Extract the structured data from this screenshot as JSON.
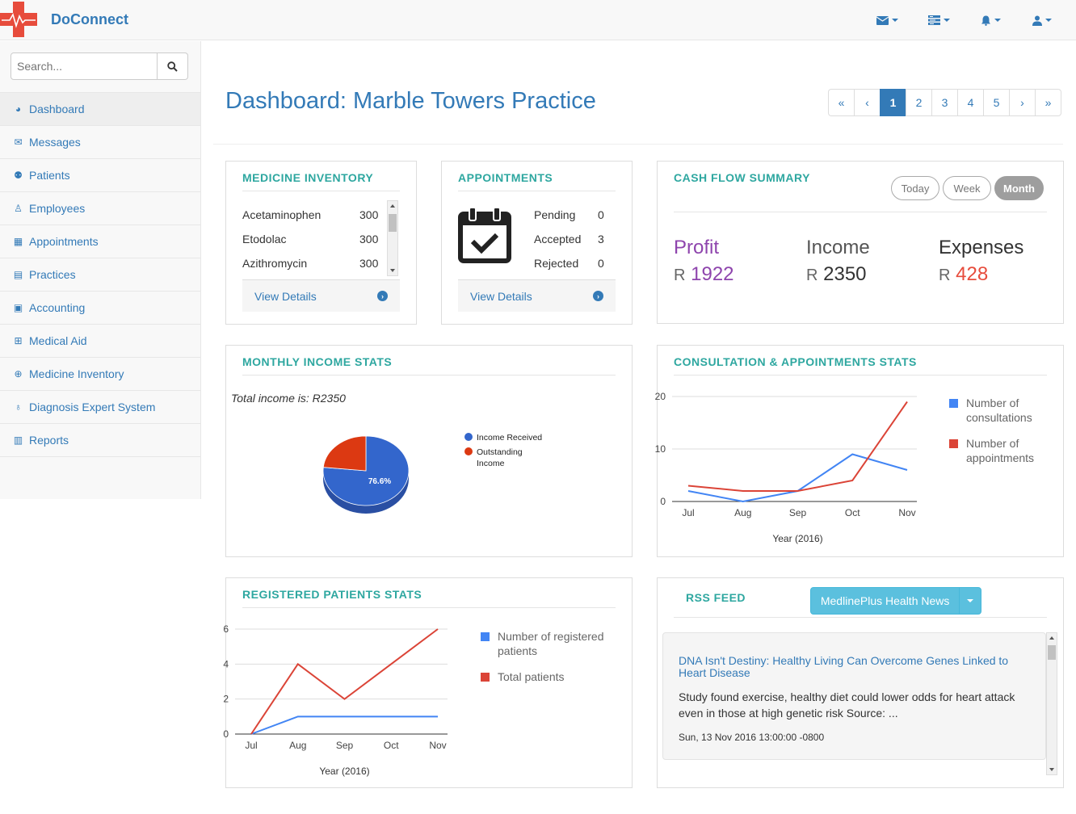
{
  "brand": {
    "name": "DoConnect"
  },
  "topnav": {
    "icons": [
      "envelope-icon",
      "tasks-icon",
      "bell-icon",
      "user-icon"
    ]
  },
  "search": {
    "placeholder": "Search..."
  },
  "sidebar": {
    "items": [
      {
        "label": "Dashboard",
        "icon": "dashboard-icon"
      },
      {
        "label": "Messages",
        "icon": "envelope-icon"
      },
      {
        "label": "Patients",
        "icon": "users-icon"
      },
      {
        "label": "Employees",
        "icon": "male-icon"
      },
      {
        "label": "Appointments",
        "icon": "calendar-icon"
      },
      {
        "label": "Practices",
        "icon": "building-icon"
      },
      {
        "label": "Accounting",
        "icon": "money-icon"
      },
      {
        "label": "Medical Aid",
        "icon": "plus-square-icon"
      },
      {
        "label": "Medicine Inventory",
        "icon": "medkit-icon"
      },
      {
        "label": "Diagnosis Expert System",
        "icon": "stethoscope-icon"
      },
      {
        "label": "Reports",
        "icon": "bar-chart-icon"
      }
    ]
  },
  "main": {
    "title": "Dashboard: Marble Towers Practice",
    "pagination": {
      "first": "«",
      "prev": "‹",
      "pages": [
        "1",
        "2",
        "3",
        "4",
        "5"
      ],
      "active": "1",
      "next": "›",
      "last": "»"
    }
  },
  "medicine_inventory": {
    "title": "MEDICINE INVENTORY",
    "rows": [
      {
        "name": "Acetaminophen",
        "qty": "300"
      },
      {
        "name": "Etodolac",
        "qty": "300"
      },
      {
        "name": "Azithromycin",
        "qty": "300"
      }
    ],
    "view_details": "View Details"
  },
  "appointments": {
    "title": "APPOINTMENTS",
    "rows": [
      {
        "label": "Pending",
        "count": "0"
      },
      {
        "label": "Accepted",
        "count": "3"
      },
      {
        "label": "Rejected",
        "count": "0"
      }
    ],
    "view_details": "View Details"
  },
  "cash_flow": {
    "title": "CASH FLOW SUMMARY",
    "filters": [
      "Today",
      "Week",
      "Month"
    ],
    "active_filter": "Month",
    "currency": "R",
    "items": [
      {
        "label": "Profit",
        "value": "1922",
        "color": "#8e44ad"
      },
      {
        "label": "Income",
        "value": "2350",
        "color": "#333333"
      },
      {
        "label": "Expenses",
        "value": "428",
        "color": "#e74c3c"
      }
    ]
  },
  "monthly_income": {
    "title": "MONTHLY INCOME STATS",
    "note": "Total income is: R2350",
    "slice_label": "76.6%"
  },
  "consultation_stats": {
    "title": "CONSULTATION & APPOINTMENTS STATS"
  },
  "registered_patients": {
    "title": "REGISTERED PATIENTS STATS"
  },
  "rss": {
    "title": "RSS FEED",
    "source_button": "MedlinePlus Health News",
    "item": {
      "headline": "DNA Isn't Destiny: Healthy Living Can Overcome Genes Linked to Heart Disease",
      "summary": "Study found exercise, healthy diet could lower odds for heart attack even in those at high genetic risk Source: ...",
      "date": "Sun, 13 Nov 2016 13:00:00 -0800"
    }
  },
  "chart_data": [
    {
      "type": "pie",
      "categories": [
        "Income Received",
        "Outstanding Income"
      ],
      "values": [
        76.6,
        23.4
      ],
      "colors": [
        "#3366cc",
        "#dc3912"
      ],
      "legend": "right"
    },
    {
      "type": "line",
      "categories": [
        "Jul",
        "Aug",
        "Sep",
        "Oct",
        "Nov"
      ],
      "series": [
        {
          "name": "Number of consultations",
          "values": [
            2,
            0,
            2,
            9,
            6
          ],
          "color": "#4285f4"
        },
        {
          "name": "Number of appointments",
          "values": [
            3,
            2,
            2,
            4,
            19
          ],
          "color": "#db4437"
        }
      ],
      "xlabel": "Year (2016)",
      "ylim": [
        0,
        20
      ],
      "yticks": [
        0,
        10,
        20
      ],
      "legend": "right"
    },
    {
      "type": "line",
      "categories": [
        "Jul",
        "Aug",
        "Sep",
        "Oct",
        "Nov"
      ],
      "series": [
        {
          "name": "Number of registered patients",
          "values": [
            0,
            1,
            1,
            1,
            1
          ],
          "color": "#4285f4"
        },
        {
          "name": "Total patients",
          "values": [
            0,
            4,
            2,
            4,
            6
          ],
          "color": "#db4437"
        }
      ],
      "xlabel": "Year (2016)",
      "ylim": [
        0,
        6
      ],
      "yticks": [
        0,
        2,
        4,
        6
      ],
      "legend": "right"
    }
  ]
}
